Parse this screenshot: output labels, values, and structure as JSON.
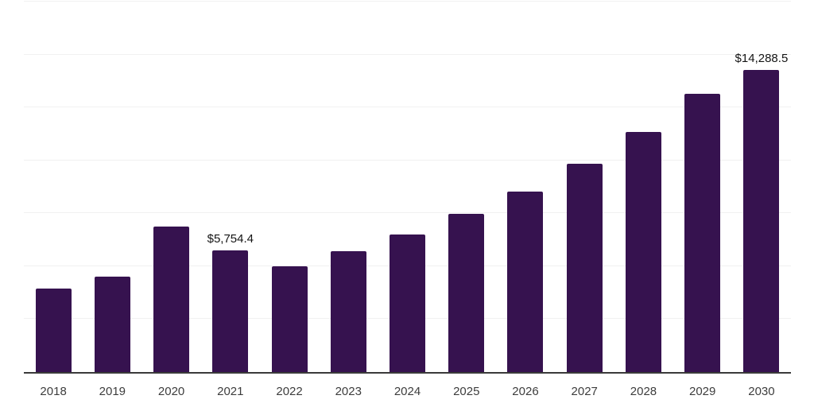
{
  "chart_data": {
    "type": "bar",
    "title": "",
    "xlabel": "",
    "ylabel": "",
    "categories": [
      "2018",
      "2019",
      "2020",
      "2021",
      "2022",
      "2023",
      "2024",
      "2025",
      "2026",
      "2027",
      "2028",
      "2029",
      "2030"
    ],
    "values": [
      3925,
      4525,
      6880,
      5754.4,
      4985,
      5710,
      6480,
      7455,
      8540,
      9845,
      11340,
      13150,
      14288.5
    ],
    "annotations": [
      {
        "index": 3,
        "label": "$5,754.4"
      },
      {
        "index": 12,
        "label": "$14,288.5"
      }
    ],
    "ylim": [
      0,
      17500
    ],
    "gridline_values": [
      2500,
      5000,
      7500,
      10000,
      12500,
      15000,
      17500
    ],
    "grid": true,
    "legend": "none",
    "y_axis_ticks": "none",
    "colors": {
      "bar": "#36124f",
      "gridline": "#f1f1f1",
      "axis_line": "#3a3a3a",
      "tick_label": "#3d3d3d",
      "value_label": "#141414",
      "background": "#ffffff"
    }
  }
}
